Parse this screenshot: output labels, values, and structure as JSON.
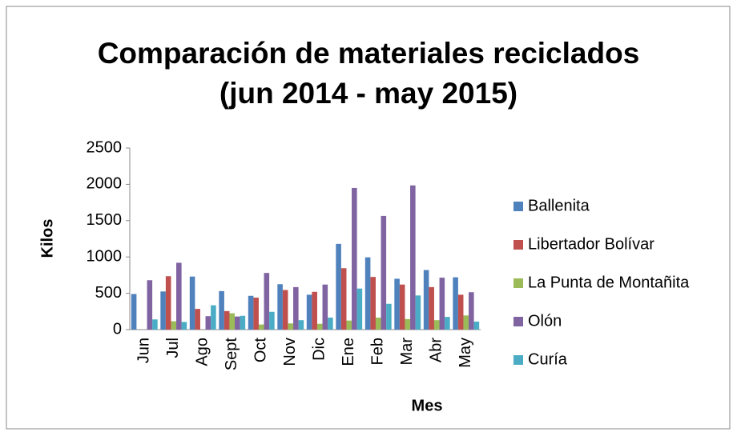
{
  "chart_data": {
    "type": "bar",
    "title": "Comparación de materiales reciclados (jun 2014 - may 2015)",
    "x_label": "Mes",
    "y_label": "Kilos",
    "categories": [
      "Jun",
      "Jul",
      "Ago",
      "Sept",
      "Oct",
      "Nov",
      "Dic",
      "Ene",
      "Feb",
      "Mar",
      "Abr",
      "May"
    ],
    "series": [
      {
        "name": "Ballenita",
        "color": "#4f81bd",
        "values": [
          490,
          525,
          730,
          530,
          465,
          625,
          480,
          1180,
          995,
          700,
          820,
          720
        ]
      },
      {
        "name": "Libertador Bolívar",
        "color": "#c0504d",
        "values": [
          0,
          735,
          285,
          255,
          440,
          545,
          520,
          845,
          725,
          620,
          585,
          480
        ]
      },
      {
        "name": "La Punta de Montañita",
        "color": "#9bbb59",
        "values": [
          0,
          115,
          0,
          225,
          70,
          85,
          80,
          125,
          165,
          145,
          130,
          195
        ]
      },
      {
        "name": "Olón",
        "color": "#8064a2",
        "values": [
          680,
          920,
          185,
          180,
          780,
          585,
          620,
          1950,
          1565,
          1985,
          715,
          515
        ]
      },
      {
        "name": "Curía",
        "color": "#4bacc6",
        "values": [
          140,
          105,
          335,
          190,
          245,
          130,
          165,
          565,
          355,
          470,
          175,
          110
        ]
      }
    ],
    "ylim": [
      0,
      2500
    ],
    "yticks": [
      0,
      500,
      1000,
      1500,
      2000,
      2500
    ],
    "grid": false,
    "legend": "right"
  }
}
